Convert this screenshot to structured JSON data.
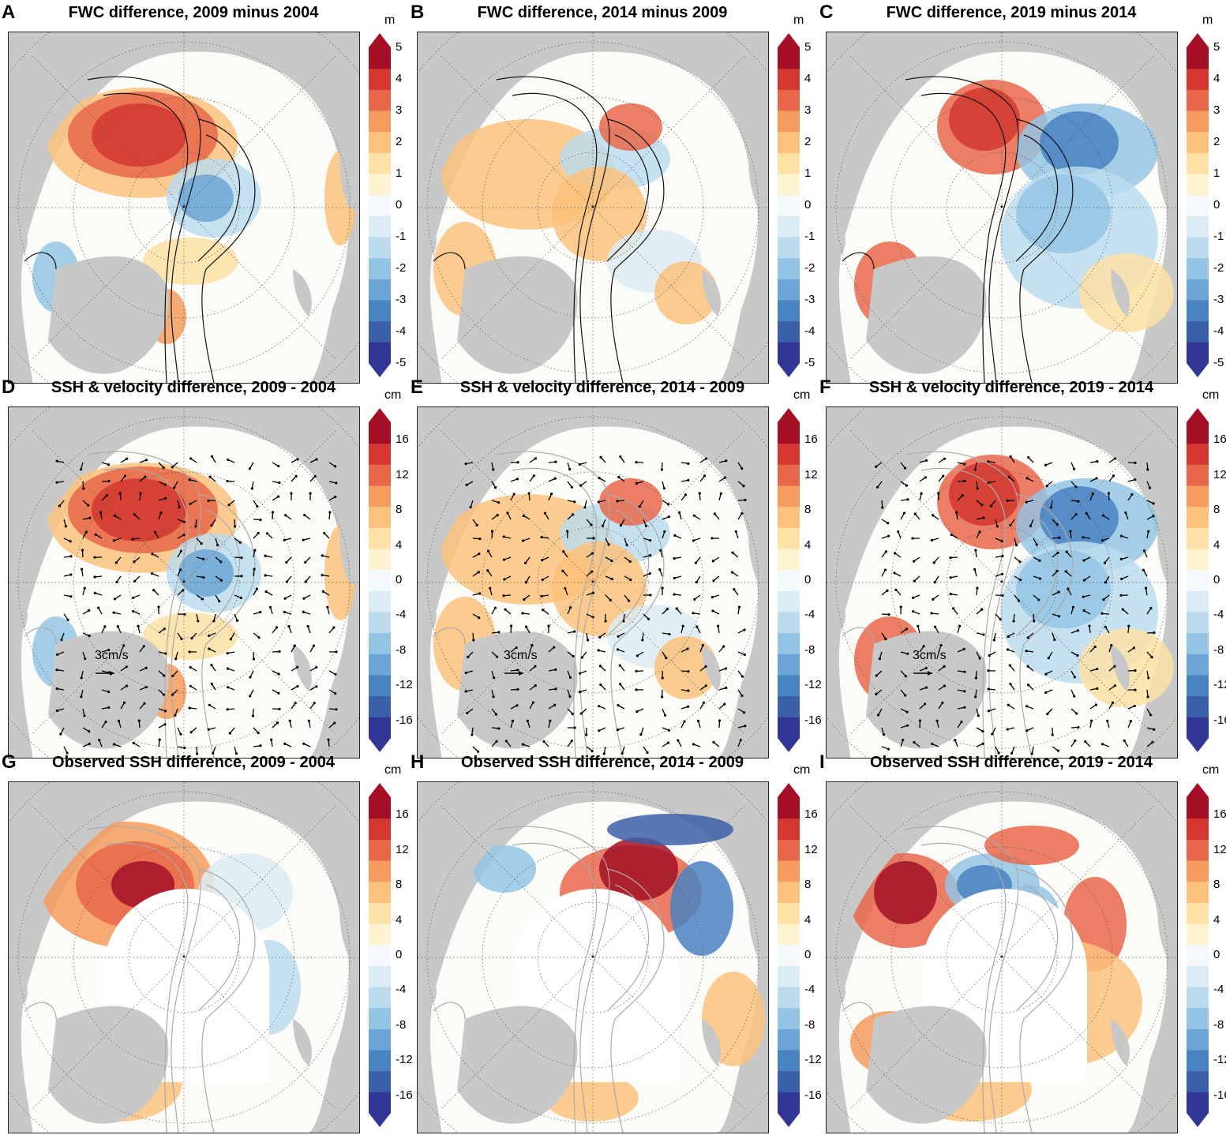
{
  "figure": {
    "panels": [
      {
        "id": "A",
        "letter": "A",
        "title": "FWC difference, 2009 minus 2004",
        "kind": "fwc",
        "unit": "m",
        "pattern": "A"
      },
      {
        "id": "B",
        "letter": "B",
        "title": "FWC difference, 2014 minus 2009",
        "kind": "fwc",
        "unit": "m",
        "pattern": "B"
      },
      {
        "id": "C",
        "letter": "C",
        "title": "FWC difference, 2019 minus 2014",
        "kind": "fwc",
        "unit": "m",
        "pattern": "C"
      },
      {
        "id": "D",
        "letter": "D",
        "title": "SSH & velocity difference, 2009 - 2004",
        "kind": "ssh_vel",
        "unit": "cm",
        "pattern": "A",
        "vector_label": "3cm/s"
      },
      {
        "id": "E",
        "letter": "E",
        "title": "SSH & velocity difference, 2014 - 2009",
        "kind": "ssh_vel",
        "unit": "cm",
        "pattern": "B",
        "vector_label": "3cm/s"
      },
      {
        "id": "F",
        "letter": "F",
        "title": "SSH & velocity difference, 2019 - 2014",
        "kind": "ssh_vel",
        "unit": "cm",
        "pattern": "C",
        "vector_label": "3cm/s"
      },
      {
        "id": "G",
        "letter": "G",
        "title": "Observed SSH difference, 2009 - 2004",
        "kind": "obs",
        "unit": "cm",
        "pattern": "G"
      },
      {
        "id": "H",
        "letter": "H",
        "title": "Observed SSH difference, 2014 - 2009",
        "kind": "obs",
        "unit": "cm",
        "pattern": "H"
      },
      {
        "id": "I",
        "letter": "I",
        "title": "Observed SSH difference, 2019 - 2014",
        "kind": "obs",
        "unit": "cm",
        "pattern": "I"
      }
    ],
    "colorbars": {
      "fwc": {
        "unit": "m",
        "ticks": [
          "5",
          "4",
          "3",
          "2",
          "1",
          "0",
          "-1",
          "-2",
          "-3",
          "-4",
          "-5"
        ],
        "range": [
          -5,
          5
        ]
      },
      "ssh": {
        "unit": "cm",
        "ticks": [
          "16",
          "12",
          "8",
          "4",
          "0",
          "-4",
          "-8",
          "-12",
          "-16"
        ],
        "range": [
          -18,
          18
        ]
      }
    },
    "palette": [
      "#313695",
      "#3b5fa8",
      "#4a83c2",
      "#6ca6d6",
      "#94c4e4",
      "#bcdced",
      "#dcecf5",
      "#f4f9fb",
      "#fdf3d0",
      "#fde1a6",
      "#fbc27d",
      "#f59c5e",
      "#e8674a",
      "#d3372f",
      "#a50f26"
    ],
    "land_color": "#c8c8c8",
    "ocean_color": "#ffffff"
  }
}
